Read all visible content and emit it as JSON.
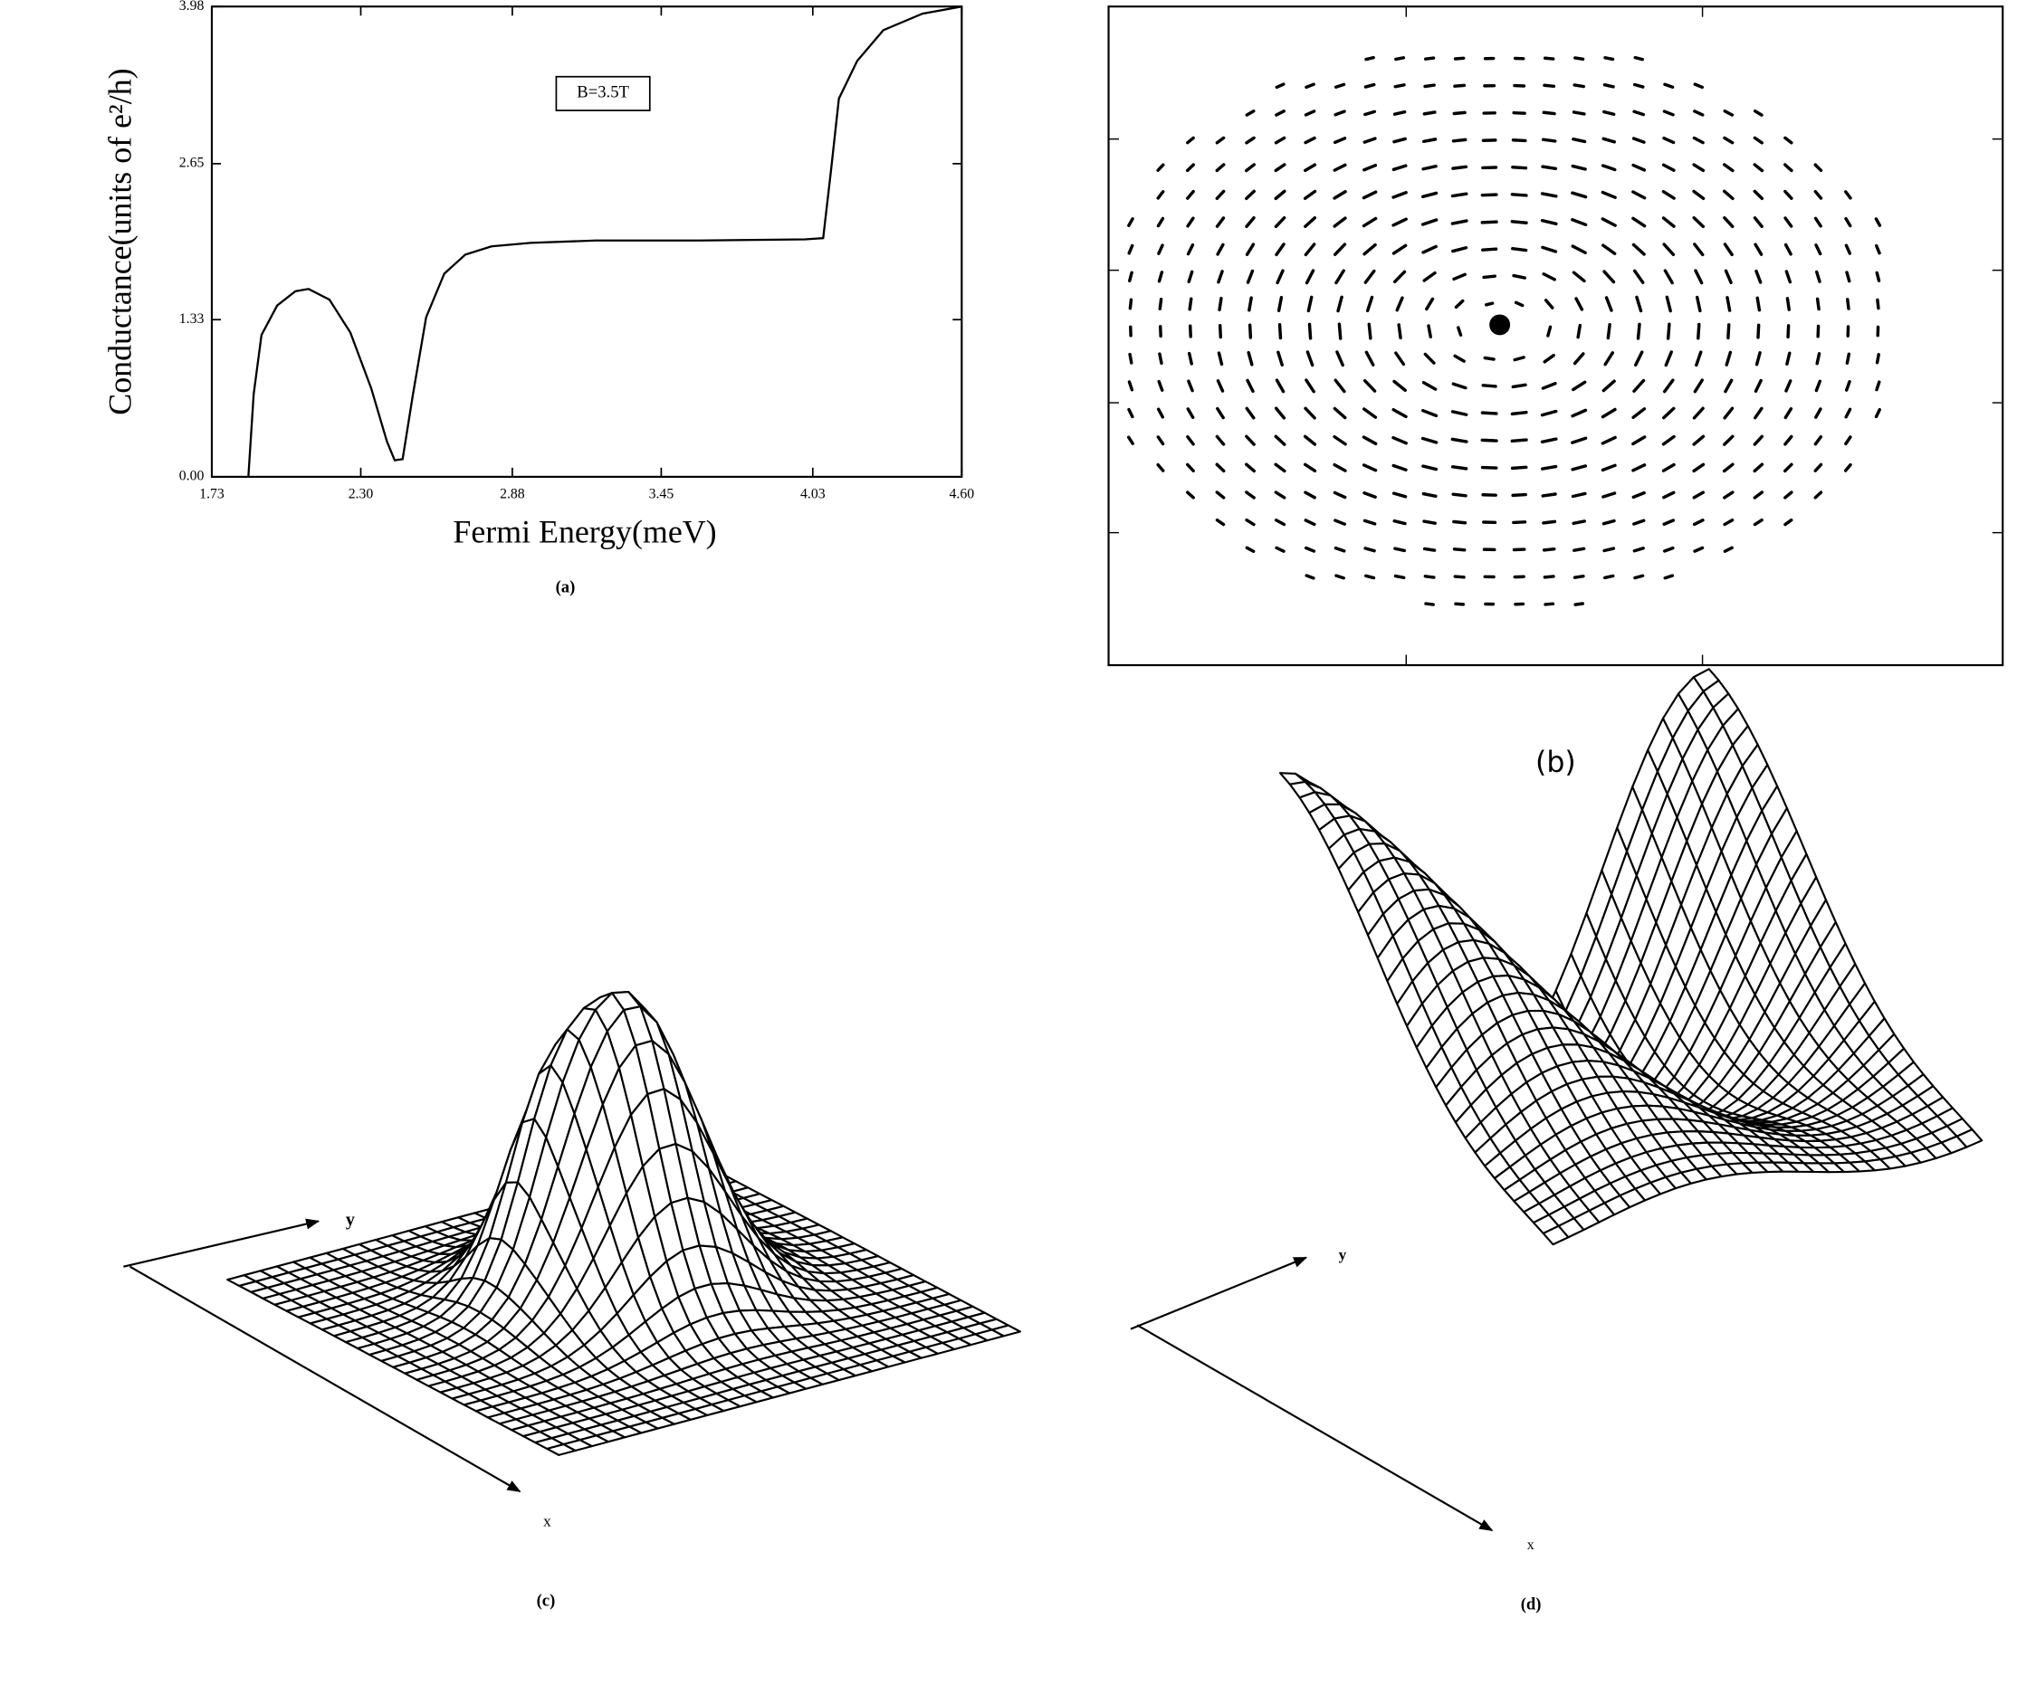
{
  "chart_data": {
    "type": "line",
    "y_label": "Conductance(units of e²/h)",
    "x_label": "Fermi Energy(meV)",
    "annotation": "B=3.5T",
    "color": "#000000",
    "x": [
      1.87,
      1.89,
      1.92,
      1.98,
      2.05,
      2.1,
      2.18,
      2.26,
      2.34,
      2.4,
      2.43,
      2.46,
      2.5,
      2.55,
      2.62,
      2.7,
      2.8,
      2.95,
      3.2,
      3.6,
      4.0,
      4.07,
      4.1,
      4.13,
      4.2,
      4.3,
      4.45,
      4.6
    ],
    "values": [
      0,
      0.7,
      1.2,
      1.45,
      1.57,
      1.59,
      1.5,
      1.22,
      0.75,
      0.3,
      0.14,
      0.15,
      0.7,
      1.35,
      1.72,
      1.88,
      1.95,
      1.98,
      2.0,
      2.0,
      2.01,
      2.02,
      2.6,
      3.2,
      3.52,
      3.78,
      3.92,
      3.98
    ],
    "xlim": [
      1.73,
      4.6
    ],
    "ylim": [
      0,
      3.98
    ],
    "xticks": [
      1.73,
      {
        "value": 2.3,
        "label": "2.30"
      },
      2.88,
      3.45,
      4.03,
      {
        "value": 4.6,
        "label": "4.60"
      }
    ],
    "yticks": [
      {
        "value": 0,
        "label": "0.00"
      },
      1.33,
      2.65,
      3.98
    ]
  },
  "figure": {
    "panel_labels": [
      "(a)",
      "(b)",
      "(c)",
      "(d)"
    ],
    "panel_c_axes": [
      "y",
      "x"
    ],
    "panel_d_axes": [
      "y",
      "x"
    ]
  }
}
